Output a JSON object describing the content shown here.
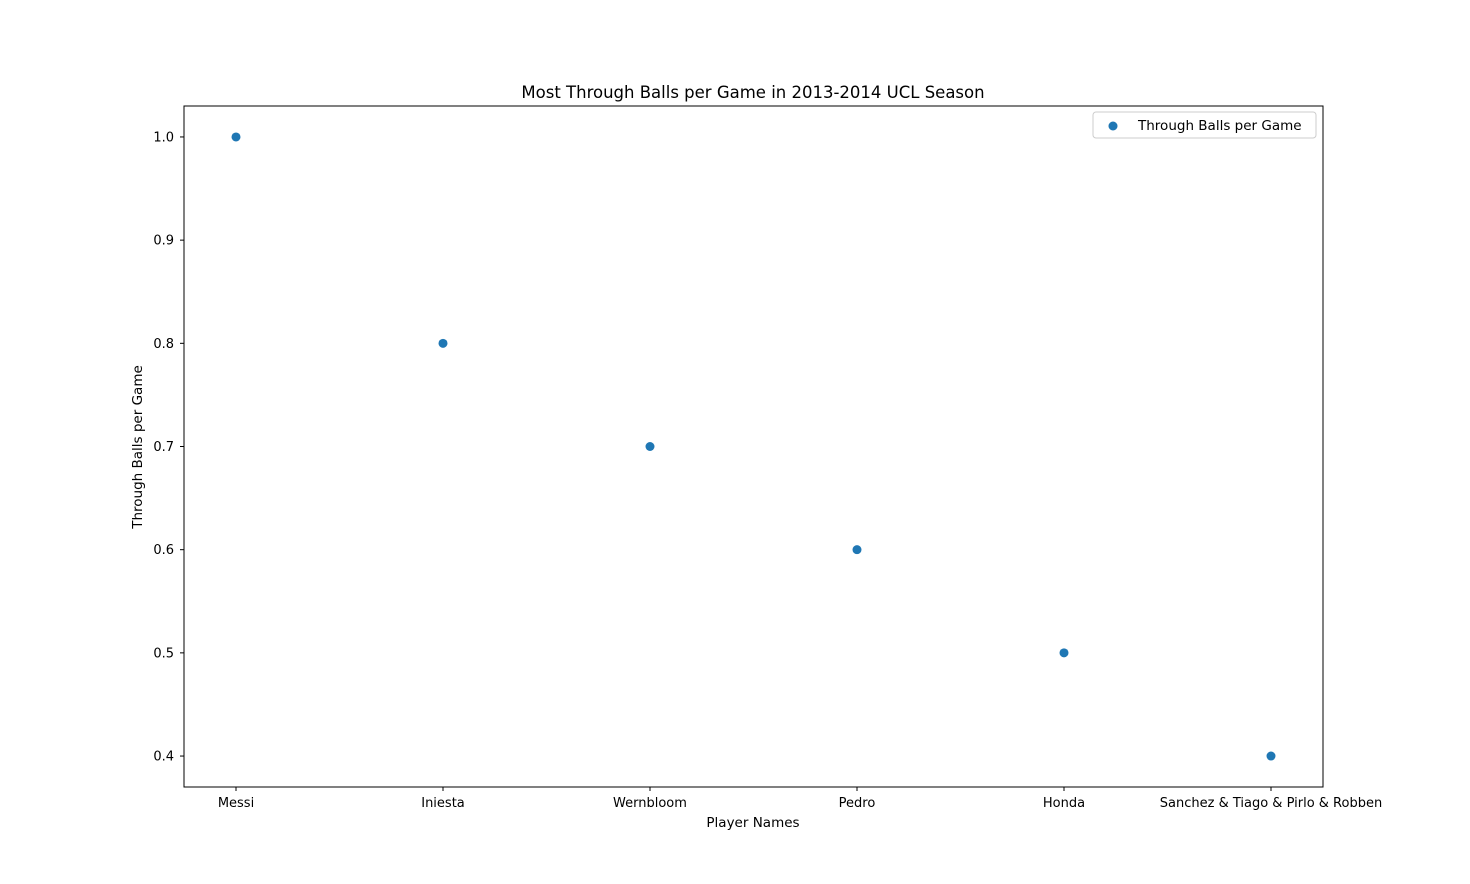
{
  "chart_data": {
    "type": "scatter",
    "title": "Most Through Balls per Game in 2013-2014 UCL Season",
    "xlabel": "Player Names",
    "ylabel": "Through Balls per Game",
    "categories": [
      "Messi",
      "Iniesta",
      "Wernbloom",
      "Pedro",
      "Honda",
      "Sanchez & Tiago & Pirlo & Robben"
    ],
    "series": [
      {
        "name": "Through Balls per Game",
        "values": [
          1.0,
          0.8,
          0.7,
          0.6,
          0.5,
          0.4
        ],
        "color": "#1f77b4"
      }
    ],
    "ylim": [
      0.37,
      1.03
    ],
    "yticks": [
      "0.4",
      "0.5",
      "0.6",
      "0.7",
      "0.8",
      "0.9",
      "1.0"
    ],
    "grid": false,
    "legend_position": "upper right"
  }
}
